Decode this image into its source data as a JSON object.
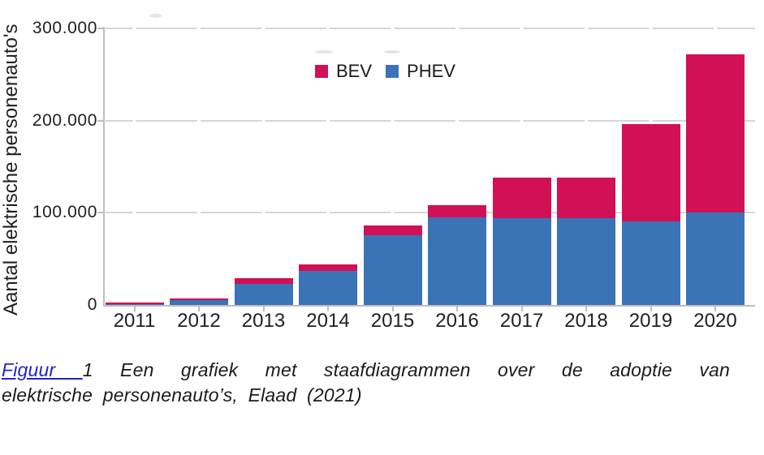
{
  "chart_data": {
    "type": "bar",
    "stacked": true,
    "title": "",
    "categories": [
      "2011",
      "2012",
      "2013",
      "2014",
      "2015",
      "2016",
      "2017",
      "2018",
      "2019",
      "2020"
    ],
    "series": [
      {
        "name": "BEV",
        "color": "#d11056",
        "values": [
          2000,
          2000,
          6000,
          7000,
          10000,
          13000,
          44000,
          44000,
          105000,
          172000
        ]
      },
      {
        "name": "PHEV",
        "color": "#3b74b6",
        "values": [
          500,
          5000,
          23000,
          37000,
          76000,
          95000,
          94000,
          94000,
          91000,
          100000
        ]
      }
    ],
    "stack_bottom_to_top": [
      "PHEV",
      "BEV"
    ],
    "totals": [
      2500,
      7000,
      29000,
      44000,
      86000,
      108000,
      138000,
      138000,
      196000,
      272000
    ],
    "xlabel": "",
    "ylabel": "Aantal elektrische personenauto's",
    "yticks": [
      {
        "label": "0",
        "value": 0
      },
      {
        "label": "100.000",
        "value": 100000
      },
      {
        "label": "200.000",
        "value": 200000
      },
      {
        "label": "300.000",
        "value": 300000
      }
    ],
    "ylim": [
      0,
      300000
    ],
    "grid": "horizontal-dashed",
    "legend_position": "top-center",
    "legend_entries": [
      "BEV",
      "PHEV"
    ]
  },
  "colors": {
    "bev": "#d11056",
    "phev": "#3b74b6",
    "gridline": "#d6d6d6",
    "axis": "#bdbdbd",
    "link": "#2323cf"
  },
  "caption": {
    "link_text": "Figuur ",
    "line1_rest": "1 Een grafiek met staafdiagrammen over de adoptie van",
    "line2": "elektrische personenauto’s, Elaad (2021)"
  }
}
